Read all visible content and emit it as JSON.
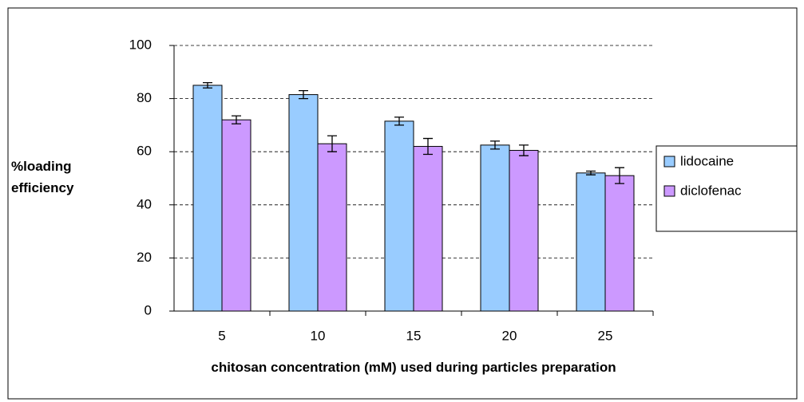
{
  "chart_data": {
    "type": "bar",
    "ylabel": "%loading efficiency",
    "xlabel": "chitosan concentration (mM) used during particles preparation",
    "categories": [
      "5",
      "10",
      "15",
      "20",
      "25"
    ],
    "series": [
      {
        "name": "lidocaine",
        "color": "#99ccff",
        "values": [
          85,
          81.5,
          71.5,
          62.5,
          52
        ],
        "errors": [
          1,
          1.5,
          1.5,
          1.5,
          0.7
        ]
      },
      {
        "name": "diclofenac",
        "color": "#cc99ff",
        "values": [
          72,
          63,
          62,
          60.5,
          51
        ],
        "errors": [
          1.5,
          3,
          3,
          2,
          3
        ]
      }
    ],
    "ylim": [
      0,
      100
    ],
    "yticks": [
      0,
      20,
      40,
      60,
      80,
      100
    ],
    "grid": true,
    "legend": "right"
  }
}
